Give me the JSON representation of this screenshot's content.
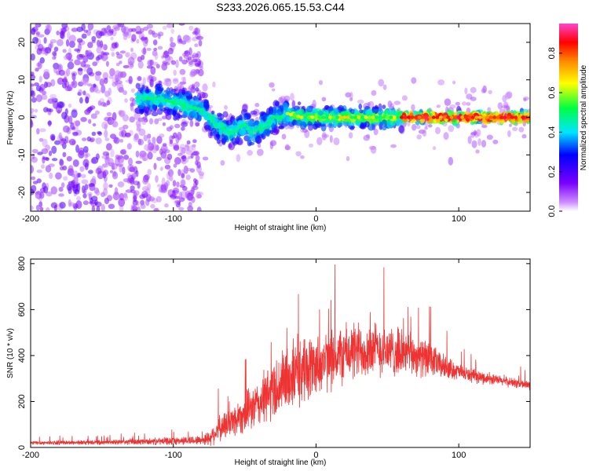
{
  "chart_data": [
    {
      "type": "heatmap",
      "title": "S233.2026.065.15.53.C44",
      "xlabel": "Height of straight line (km)",
      "ylabel": "Frequency (Hz)",
      "xlim": [
        -200,
        150
      ],
      "ylim": [
        -25,
        25
      ],
      "xticks": [
        -200,
        -100,
        0,
        100
      ],
      "yticks": [
        20,
        10,
        0,
        -10,
        -20
      ],
      "colorbar": {
        "label": "Normalized spectral amplitude",
        "range": [
          0,
          0.95
        ],
        "ticks": [
          "0.0",
          "0.2",
          "0.4",
          "0.6",
          "0.8"
        ],
        "tick_values": [
          0,
          0.2,
          0.4,
          0.6,
          0.8
        ]
      },
      "ridge": {
        "x": [
          -120,
          -110,
          -100,
          -90,
          -80,
          -70,
          -60,
          -50,
          -45,
          -40,
          -35,
          -30,
          -25,
          -20,
          -10,
          0,
          20,
          40,
          60,
          80,
          100,
          120,
          150
        ],
        "y": [
          5,
          5,
          4,
          3,
          2,
          -2,
          -4,
          -2,
          -4,
          -3,
          -2,
          0,
          0,
          1,
          0,
          0,
          0,
          0,
          0,
          0,
          0,
          0,
          0
        ]
      }
    },
    {
      "type": "line",
      "xlabel": "Height of straight line (km)",
      "ylabel": "SNR (10 * v/v)",
      "xlim": [
        -200,
        150
      ],
      "ylim": [
        0,
        820
      ],
      "xticks": [
        -200,
        -100,
        0,
        100
      ],
      "yticks": [
        0,
        200,
        400,
        600,
        800
      ],
      "color": "#ee3333",
      "envelope": {
        "x": [
          -200,
          -150,
          -120,
          -100,
          -90,
          -80,
          -75,
          -70,
          -60,
          -50,
          -40,
          -30,
          -25,
          -20,
          -10,
          0,
          10,
          20,
          30,
          40,
          50,
          60,
          70,
          80,
          90,
          100,
          110,
          120,
          130,
          140,
          150
        ],
        "mean": [
          20,
          22,
          25,
          28,
          30,
          32,
          40,
          70,
          110,
          150,
          190,
          250,
          270,
          300,
          330,
          360,
          380,
          410,
          420,
          430,
          420,
          410,
          400,
          380,
          350,
          330,
          310,
          300,
          290,
          280,
          270
        ],
        "amplitude": [
          10,
          12,
          16,
          20,
          22,
          24,
          40,
          60,
          80,
          100,
          120,
          160,
          170,
          170,
          170,
          160,
          150,
          150,
          150,
          140,
          130,
          120,
          100,
          90,
          60,
          40,
          35,
          30,
          25,
          25,
          25
        ]
      }
    }
  ],
  "colors": {
    "trace": "#ee3333",
    "axis": "#000000",
    "background": "#ffffff"
  }
}
